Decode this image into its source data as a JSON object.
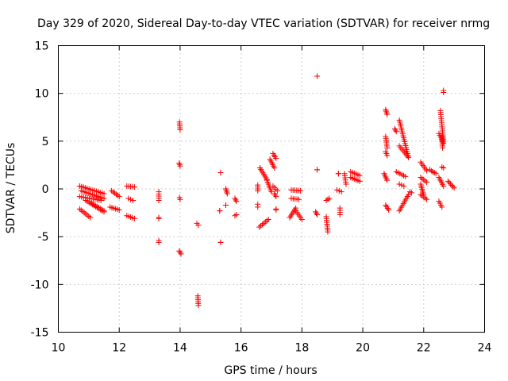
{
  "chart_data": {
    "type": "scatter",
    "title": "Day 329 of 2020, Sidereal Day-to-day VTEC variation (SDTVAR) for receiver nrmg",
    "xlabel": "GPS time / hours",
    "ylabel": "SDTVAR / TECUs",
    "xlim": [
      10,
      24
    ],
    "ylim": [
      -15,
      15
    ],
    "xticks": [
      10,
      12,
      14,
      16,
      18,
      20,
      22,
      24
    ],
    "yticks": [
      -15,
      -10,
      -5,
      0,
      5,
      10,
      15
    ],
    "xtick_labels": [
      "10",
      "12",
      "14",
      "16",
      "18",
      "20",
      "22",
      "24"
    ],
    "ytick_labels": [
      "-15",
      "-10",
      "-5",
      "0",
      "5",
      "10",
      "15"
    ],
    "grid": true,
    "marker": "+",
    "color": "#ff0000",
    "series": [
      {
        "name": "SDTVAR",
        "segments": [
          [
            10.7,
            0.3,
            11.5,
            -0.5
          ],
          [
            10.75,
            -0.2,
            11.5,
            -1.0
          ],
          [
            10.7,
            -0.8,
            11.4,
            -1.2
          ],
          [
            10.9,
            -1.2,
            11.5,
            -2.4
          ],
          [
            10.7,
            -2.1,
            11.05,
            -3.0
          ],
          [
            11.1,
            -1.5,
            11.5,
            -2.3
          ],
          [
            11.75,
            -0.2,
            12.0,
            -0.8
          ],
          [
            11.7,
            -1.9,
            12.0,
            -2.2
          ],
          [
            12.25,
            0.3,
            12.5,
            0.2
          ],
          [
            12.3,
            -1.0,
            12.45,
            -1.2
          ],
          [
            12.25,
            -2.8,
            12.5,
            -3.1
          ],
          [
            13.3,
            -0.3,
            13.3,
            -1.2
          ],
          [
            13.3,
            -3.0,
            13.3,
            -3.1
          ],
          [
            13.3,
            -5.4,
            13.3,
            -5.6
          ],
          [
            13.98,
            7.0,
            14.0,
            6.2
          ],
          [
            13.97,
            2.7,
            14.0,
            2.4
          ],
          [
            13.98,
            -0.9,
            14.0,
            -1.1
          ],
          [
            13.97,
            -6.5,
            14.03,
            -6.8
          ],
          [
            14.55,
            -3.6,
            14.6,
            -3.8
          ],
          [
            14.58,
            -11.2,
            14.6,
            -12.2
          ],
          [
            15.33,
            1.7,
            15.33,
            1.7
          ],
          [
            15.3,
            -2.3,
            15.3,
            -2.3
          ],
          [
            15.33,
            -5.6,
            15.33,
            -5.6
          ],
          [
            15.5,
            0.0,
            15.55,
            -0.5
          ],
          [
            15.5,
            -1.7,
            15.5,
            -1.7
          ],
          [
            15.8,
            -1.0,
            15.85,
            -1.3
          ],
          [
            15.8,
            -2.8,
            15.85,
            -2.7
          ],
          [
            16.55,
            0.4,
            16.55,
            -0.2
          ],
          [
            16.55,
            -1.6,
            16.55,
            -1.9
          ],
          [
            16.6,
            -4.0,
            16.9,
            -3.2
          ],
          [
            16.62,
            2.2,
            16.85,
            1.0
          ],
          [
            16.85,
            0.9,
            17.0,
            -0.3
          ],
          [
            16.95,
            3.1,
            17.1,
            2.2
          ],
          [
            17.05,
            3.7,
            17.15,
            3.2
          ],
          [
            17.05,
            0.3,
            17.2,
            -0.2
          ],
          [
            17.1,
            -0.5,
            17.15,
            -0.8
          ],
          [
            17.15,
            -2.1,
            17.15,
            -2.2
          ],
          [
            17.65,
            -0.1,
            17.95,
            -0.2
          ],
          [
            17.65,
            -1.0,
            17.9,
            -1.1
          ],
          [
            17.6,
            -3.0,
            17.8,
            -2.0
          ],
          [
            17.8,
            -2.3,
            18.0,
            -3.2
          ],
          [
            18.5,
            11.8,
            18.5,
            11.8
          ],
          [
            18.5,
            2.0,
            18.5,
            2.0
          ],
          [
            18.45,
            -2.4,
            18.5,
            -2.7
          ],
          [
            18.8,
            -1.2,
            18.9,
            -1.0
          ],
          [
            18.8,
            -2.9,
            18.85,
            -4.5
          ],
          [
            19.2,
            1.6,
            19.2,
            1.6
          ],
          [
            19.15,
            -0.1,
            19.3,
            -0.3
          ],
          [
            19.25,
            -2.0,
            19.25,
            -2.7
          ],
          [
            19.4,
            1.6,
            19.45,
            0.5
          ],
          [
            19.6,
            1.8,
            19.9,
            1.4
          ],
          [
            19.6,
            1.2,
            19.9,
            0.8
          ],
          [
            20.75,
            8.3,
            20.8,
            7.8
          ],
          [
            20.75,
            5.5,
            20.8,
            4.3
          ],
          [
            20.75,
            3.9,
            20.8,
            3.5
          ],
          [
            20.7,
            1.6,
            20.8,
            0.9
          ],
          [
            20.75,
            -1.7,
            20.85,
            -2.2
          ],
          [
            21.05,
            6.3,
            21.1,
            6.0
          ],
          [
            21.2,
            7.2,
            21.5,
            3.3
          ],
          [
            21.2,
            4.5,
            21.5,
            3.3
          ],
          [
            21.1,
            1.8,
            21.4,
            1.3
          ],
          [
            21.2,
            0.5,
            21.35,
            0.3
          ],
          [
            21.2,
            -2.3,
            21.5,
            -0.6
          ],
          [
            21.55,
            -0.3,
            21.6,
            -0.4
          ],
          [
            21.9,
            2.8,
            22.1,
            1.9
          ],
          [
            21.9,
            1.2,
            22.1,
            0.7
          ],
          [
            21.9,
            0.5,
            22.0,
            -0.6
          ],
          [
            21.9,
            -0.6,
            22.1,
            -1.1
          ],
          [
            22.2,
            2.0,
            22.4,
            1.6
          ],
          [
            22.55,
            8.2,
            22.65,
            5.0
          ],
          [
            22.5,
            5.8,
            22.65,
            4.8
          ],
          [
            22.6,
            5.5,
            22.62,
            4.3
          ],
          [
            22.65,
            10.3,
            22.65,
            10.1
          ],
          [
            22.5,
            1.2,
            22.65,
            0.3
          ],
          [
            22.5,
            -1.3,
            22.6,
            -1.9
          ],
          [
            22.6,
            2.3,
            22.65,
            2.2
          ],
          [
            22.8,
            0.8,
            23.0,
            0.1
          ]
        ]
      }
    ]
  }
}
